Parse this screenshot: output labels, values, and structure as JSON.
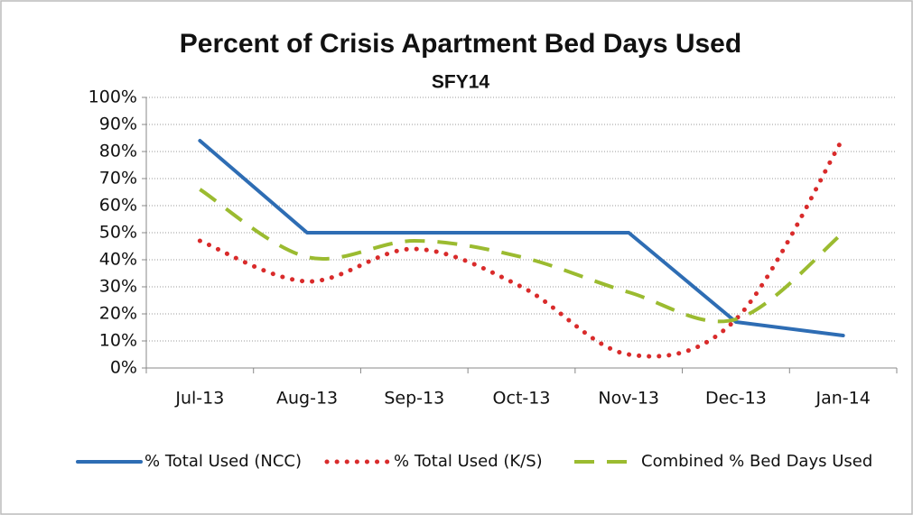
{
  "chart_data": {
    "type": "line",
    "title": "Percent of Crisis Apartment Bed Days Used",
    "subtitle": "SFY14",
    "categories": [
      "Jul-13",
      "Aug-13",
      "Sep-13",
      "Oct-13",
      "Nov-13",
      "Dec-13",
      "Jan-14"
    ],
    "series": [
      {
        "name": "% Total Used (NCC)",
        "color": "#2e6db4",
        "dash": "solid",
        "smooth": false,
        "values": [
          84,
          50,
          50,
          50,
          50,
          17,
          12
        ]
      },
      {
        "name": "% Total Used (K/S)",
        "color": "#d92b2b",
        "dash": "dotted",
        "smooth": true,
        "values": [
          47,
          32,
          44,
          30,
          5,
          18,
          85
        ]
      },
      {
        "name": "Combined % Bed Days Used",
        "color": "#9bbb30",
        "dash": "dashed",
        "smooth": true,
        "values": [
          66,
          41,
          47,
          41,
          28,
          18,
          50
        ]
      }
    ],
    "ylim": [
      0,
      100
    ],
    "yticks": [
      {
        "value": 0,
        "label": "0%"
      },
      {
        "value": 10,
        "label": "10%"
      },
      {
        "value": 20,
        "label": "20%"
      },
      {
        "value": 30,
        "label": "30%"
      },
      {
        "value": 40,
        "label": "40%"
      },
      {
        "value": 50,
        "label": "50%"
      },
      {
        "value": 60,
        "label": "60%"
      },
      {
        "value": 70,
        "label": "70%"
      },
      {
        "value": 80,
        "label": "80%"
      },
      {
        "value": 90,
        "label": "90%"
      },
      {
        "value": 100,
        "label": "100%"
      }
    ],
    "grid": true,
    "legend": "bottom"
  }
}
